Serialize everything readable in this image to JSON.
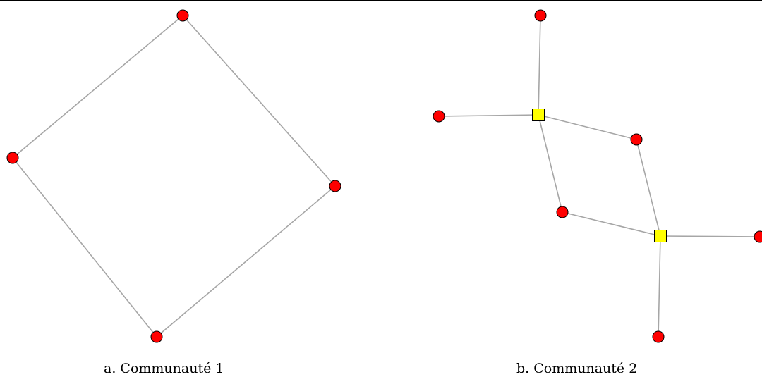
{
  "figure": {
    "captions": {
      "a": "a.  Communauté 1",
      "b": "b.  Communauté 2"
    },
    "colors": {
      "circle_node": "#ff0000",
      "square_node": "#ffff00",
      "node_stroke": "#000000",
      "edge": "#a6a6a6"
    }
  },
  "graphs": [
    {
      "id": "communaute-1",
      "nodes": [
        {
          "id": "n1",
          "shape": "circle"
        },
        {
          "id": "n2",
          "shape": "circle"
        },
        {
          "id": "n3",
          "shape": "circle"
        },
        {
          "id": "n4",
          "shape": "circle"
        }
      ],
      "edges": [
        [
          "n1",
          "n2"
        ],
        [
          "n2",
          "n3"
        ],
        [
          "n3",
          "n4"
        ],
        [
          "n4",
          "n1"
        ]
      ]
    },
    {
      "id": "communaute-2",
      "nodes": [
        {
          "id": "s1",
          "shape": "square"
        },
        {
          "id": "s2",
          "shape": "square"
        },
        {
          "id": "c1",
          "shape": "circle"
        },
        {
          "id": "c2",
          "shape": "circle"
        },
        {
          "id": "c3",
          "shape": "circle"
        },
        {
          "id": "c4",
          "shape": "circle"
        },
        {
          "id": "c5",
          "shape": "circle"
        },
        {
          "id": "c6",
          "shape": "circle"
        }
      ],
      "edges": [
        [
          "s1",
          "c1"
        ],
        [
          "s1",
          "c2"
        ],
        [
          "s1",
          "c3"
        ],
        [
          "s1",
          "c4"
        ],
        [
          "c3",
          "s2"
        ],
        [
          "c4",
          "s2"
        ],
        [
          "s2",
          "c5"
        ],
        [
          "s2",
          "c6"
        ]
      ]
    }
  ]
}
